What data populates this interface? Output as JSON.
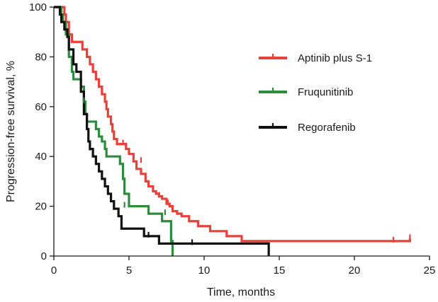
{
  "chart_data": {
    "type": "line",
    "title": "",
    "xlabel": "Time, months",
    "ylabel": "Progression-free survival, %",
    "xlim": [
      0,
      25
    ],
    "ylim": [
      0,
      100
    ],
    "xticks": [
      0,
      5,
      10,
      15,
      20,
      25
    ],
    "yticks": [
      0,
      20,
      40,
      60,
      80,
      100
    ],
    "grid": false,
    "legend_position": "right",
    "series": [
      {
        "name": "Aptinib plus S-1",
        "color": "#e8403a",
        "x": [
          0,
          0.7,
          0.8,
          1.0,
          1.2,
          1.4,
          1.5,
          1.9,
          2.2,
          2.4,
          2.6,
          2.8,
          3.0,
          3.2,
          3.4,
          3.5,
          3.6,
          3.8,
          3.9,
          4.0,
          4.2,
          4.5,
          4.8,
          5.0,
          5.3,
          5.5,
          5.8,
          6.1,
          6.3,
          6.6,
          6.8,
          7.0,
          7.2,
          7.5,
          7.7,
          7.9,
          8.2,
          8.5,
          9.0,
          9.6,
          10.4,
          11.5,
          12.5,
          22.6,
          23.7
        ],
        "y": [
          100,
          97,
          94,
          89,
          86,
          86,
          86,
          83,
          80,
          77,
          74,
          71,
          68,
          65,
          62,
          59,
          56,
          53,
          50,
          47,
          45,
          45,
          43,
          41,
          38,
          35,
          33,
          30,
          28,
          26,
          25,
          24,
          23,
          21,
          20,
          18,
          17,
          16,
          14,
          12,
          10,
          8,
          6,
          6,
          7
        ]
      },
      {
        "name": "Fruqunitinib",
        "color": "#2e8b3e",
        "x": [
          0,
          0.5,
          0.6,
          0.8,
          1.0,
          1.2,
          1.3,
          1.8,
          2.0,
          2.1,
          2.2,
          2.8,
          3.0,
          3.2,
          3.4,
          3.5,
          4.4,
          4.6,
          4.7,
          5.0,
          6.3,
          7.2,
          7.8,
          7.9
        ],
        "y": [
          100,
          97,
          94,
          89,
          80,
          74,
          71,
          68,
          62,
          57,
          54,
          51,
          48,
          46,
          43,
          40,
          37,
          31,
          25,
          20,
          17,
          14,
          6,
          0
        ]
      },
      {
        "name": "Regorafenib",
        "color": "#111111",
        "x": [
          0,
          0.4,
          0.5,
          0.7,
          0.9,
          1.0,
          1.3,
          1.5,
          1.8,
          2.0,
          2.2,
          2.3,
          2.4,
          2.6,
          2.8,
          3.0,
          3.2,
          3.4,
          3.6,
          3.8,
          4.0,
          4.3,
          4.5,
          6.0,
          6.2,
          7.0,
          9.0,
          14.3
        ],
        "y": [
          100,
          97,
          94,
          91,
          88,
          83,
          77,
          74,
          66,
          57,
          51,
          46,
          43,
          40,
          37,
          34,
          31,
          28,
          25,
          22,
          19,
          16,
          11,
          8,
          8,
          5,
          5,
          0
        ]
      }
    ],
    "censor_marks": [
      {
        "series": "Aptinib plus S-1",
        "x": [
          4.6,
          5.8,
          7.0,
          7.6,
          22.6,
          23.7
        ],
        "y": [
          45,
          38,
          24,
          21,
          6,
          7
        ]
      },
      {
        "series": "Fruqunitinib",
        "x": [
          2.0,
          4.7,
          7.4
        ],
        "y": [
          62,
          20,
          17
        ]
      },
      {
        "series": "Regorafenib",
        "x": [
          2.4,
          6.3,
          9.2
        ],
        "y": [
          43,
          8,
          5
        ]
      }
    ]
  }
}
